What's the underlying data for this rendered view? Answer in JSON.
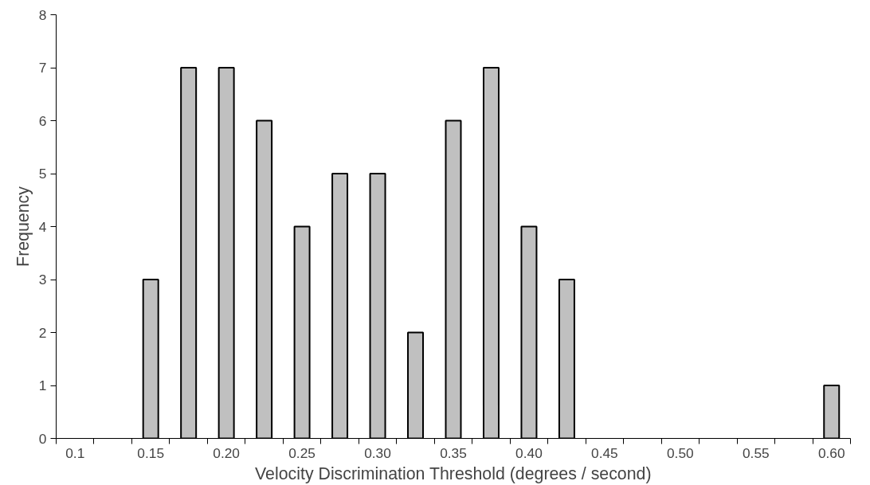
{
  "chart_data": {
    "type": "bar",
    "xlabel": "Velocity Discrimination Threshold (degrees / second)",
    "ylabel": "Frequency",
    "categories": [
      "0.1",
      null,
      "0.15",
      null,
      "0.20",
      null,
      "0.25",
      null,
      "0.30",
      null,
      "0.35",
      null,
      "0.40",
      null,
      "0.45",
      null,
      "0.50",
      null,
      "0.55",
      null,
      "0.60"
    ],
    "values": [
      0,
      0,
      3,
      7,
      7,
      6,
      4,
      5,
      5,
      2,
      6,
      7,
      4,
      3,
      0,
      0,
      0,
      0,
      0,
      0,
      1
    ],
    "color": "#c0c0c0",
    "ylim": [
      0,
      8
    ],
    "yticks": [
      0,
      1,
      2,
      3,
      4,
      5,
      6,
      7,
      8
    ],
    "grid": false
  }
}
